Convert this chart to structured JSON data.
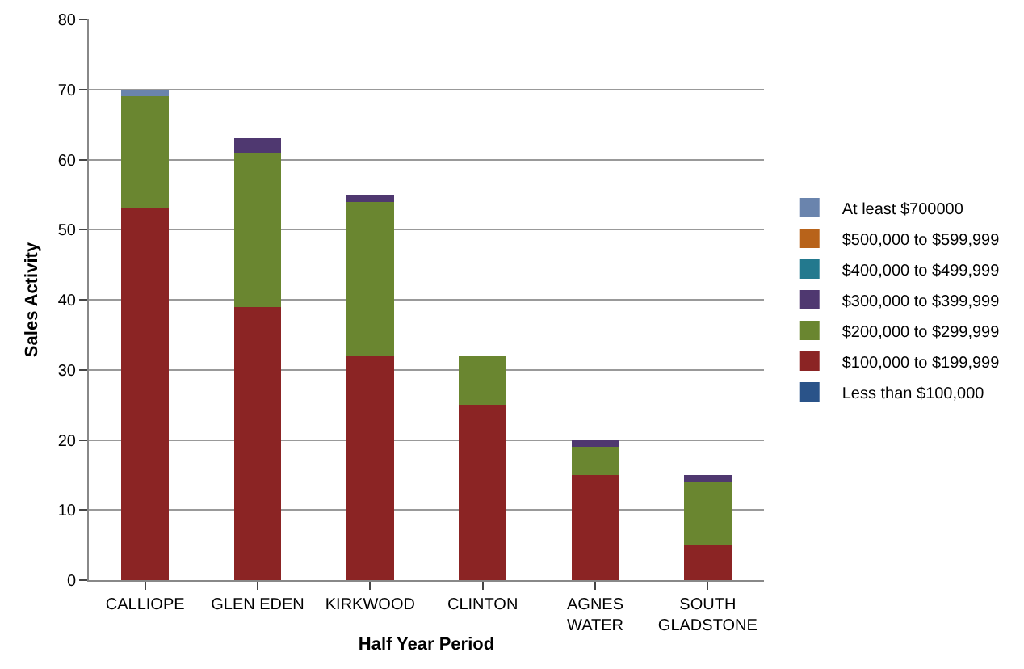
{
  "chart_data": {
    "type": "bar",
    "stacked": true,
    "xlabel": "Half Year Period",
    "ylabel": "Sales Activity",
    "categories": [
      "CALLIOPE",
      "GLEN EDEN",
      "KIRKWOOD",
      "CLINTON",
      "AGNES WATER",
      "SOUTH GLADSTONE"
    ],
    "series": [
      {
        "name": "Less than $100,000",
        "color": "#2a5389",
        "values": [
          0,
          0,
          0,
          0,
          0,
          0
        ]
      },
      {
        "name": "$100,000 to $199,999",
        "color": "#8b2424",
        "values": [
          53,
          39,
          32,
          25,
          15,
          5
        ]
      },
      {
        "name": "$200,000 to $299,999",
        "color": "#6a8630",
        "values": [
          16,
          22,
          22,
          7,
          4,
          9
        ]
      },
      {
        "name": "$300,000 to $399,999",
        "color": "#4f3870",
        "values": [
          0,
          2,
          1,
          0,
          1,
          1
        ]
      },
      {
        "name": "$400,000 to $499,999",
        "color": "#23798e",
        "values": [
          0,
          0,
          0,
          0,
          0,
          0
        ]
      },
      {
        "name": "$500,000 to $599,999",
        "color": "#b8631a",
        "values": [
          0,
          0,
          0,
          0,
          0,
          0
        ]
      },
      {
        "name": "At least $700000",
        "color": "#6a84ad",
        "values": [
          1,
          0,
          0,
          0,
          0,
          0
        ]
      }
    ],
    "ylim": [
      0,
      80
    ],
    "yticks": [
      0,
      10,
      20,
      30,
      40,
      50,
      60,
      70,
      80
    ],
    "grid": "y",
    "legend": "right"
  }
}
